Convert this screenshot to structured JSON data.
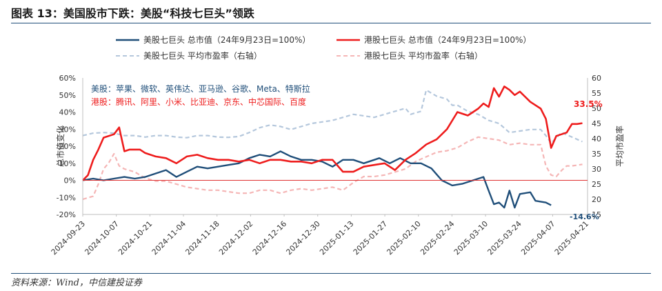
{
  "title": "图表 13：美国股市下跌：美股“科技七巨头”领跌",
  "source": "资料来源：Wind，中信建投证券",
  "chart_data": {
    "type": "line",
    "x_ticks": [
      "2024-09-23",
      "2024-10-07",
      "2024-10-21",
      "2024-11-04",
      "2024-11-18",
      "2024-12-02",
      "2024-12-16",
      "2024-12-30",
      "2025-01-13",
      "2025-01-27",
      "2025-02-10",
      "2025-02-24",
      "2025-03-10",
      "2025-03-24",
      "2025-04-07",
      "2025-04-21"
    ],
    "left_axis": {
      "label": "总市值变化",
      "ticks": [
        "60%",
        "50%",
        "40%",
        "30%",
        "20%",
        "10%",
        "0%",
        "-10%",
        "-20%"
      ],
      "ylim": [
        -20,
        60
      ]
    },
    "right_axis": {
      "label": "平均市盈率",
      "ticks": [
        "60",
        "55",
        "50",
        "45",
        "40",
        "35",
        "30",
        "25",
        "20",
        "15"
      ],
      "ylim": [
        15,
        60
      ]
    },
    "legend": [
      {
        "name": "美股七巨头 总市值（24年9月23日=100%）",
        "color": "#1f4e79",
        "style": "solid"
      },
      {
        "name": "港股七巨头 总市值（24年9月23日=100%）",
        "color": "#ee1c1c",
        "style": "solid"
      },
      {
        "name": "美股七巨头 平均市盈率（右轴）",
        "color": "#b4c7dc",
        "style": "dashed"
      },
      {
        "name": "港股七巨头 平均市盈率（右轴）",
        "color": "#f5b5b5",
        "style": "dashed"
      }
    ],
    "annotations": {
      "us_members": "美股：苹果、微软、英伟达、亚马逊、谷歌、Meta、特斯拉",
      "hk_members": "港股：腾讯、阿里、小米、比亚迪、京东、中芯国际、百度",
      "hk_end_label": "33.5%",
      "us_end_label": "-14.6%"
    },
    "series": [
      {
        "key": "us_cap",
        "axis": "left",
        "values": [
          [
            0,
            0
          ],
          [
            2,
            1
          ],
          [
            4,
            0
          ],
          [
            6,
            1
          ],
          [
            8,
            2
          ],
          [
            10,
            1
          ],
          [
            12,
            2
          ],
          [
            14,
            4
          ],
          [
            16,
            6
          ],
          [
            18,
            2
          ],
          [
            20,
            5
          ],
          [
            22,
            8
          ],
          [
            24,
            7
          ],
          [
            26,
            8
          ],
          [
            28,
            9
          ],
          [
            30,
            10
          ],
          [
            32,
            13
          ],
          [
            34,
            15
          ],
          [
            36,
            14
          ],
          [
            38,
            17
          ],
          [
            40,
            14
          ],
          [
            42,
            12
          ],
          [
            44,
            12
          ],
          [
            46,
            11
          ],
          [
            48,
            8
          ],
          [
            50,
            12
          ],
          [
            52,
            12
          ],
          [
            54,
            10
          ],
          [
            56,
            12
          ],
          [
            57,
            13
          ],
          [
            59,
            10
          ],
          [
            61,
            13
          ],
          [
            63,
            10
          ],
          [
            65,
            10
          ],
          [
            67,
            7
          ],
          [
            69,
            0
          ],
          [
            71,
            -3
          ],
          [
            73,
            -2
          ],
          [
            75,
            0
          ],
          [
            77,
            2
          ],
          [
            78,
            -6
          ],
          [
            79,
            -14
          ],
          [
            80,
            -13
          ],
          [
            81,
            -16
          ],
          [
            82,
            -6
          ],
          [
            83,
            -16
          ],
          [
            84,
            -8
          ],
          [
            86,
            -7
          ],
          [
            87,
            -12
          ],
          [
            89,
            -13
          ],
          [
            90,
            -14.6
          ]
        ]
      },
      {
        "key": "hk_cap",
        "axis": "left",
        "values": [
          [
            0,
            0
          ],
          [
            1,
            3
          ],
          [
            2,
            12
          ],
          [
            3,
            18
          ],
          [
            4,
            25
          ],
          [
            6,
            27
          ],
          [
            7,
            31
          ],
          [
            8,
            17
          ],
          [
            9,
            18
          ],
          [
            11,
            18
          ],
          [
            12,
            16
          ],
          [
            14,
            14
          ],
          [
            16,
            13
          ],
          [
            18,
            10
          ],
          [
            20,
            14
          ],
          [
            22,
            15
          ],
          [
            24,
            13
          ],
          [
            26,
            12
          ],
          [
            28,
            12
          ],
          [
            30,
            11
          ],
          [
            32,
            12
          ],
          [
            34,
            10
          ],
          [
            36,
            12
          ],
          [
            38,
            12
          ],
          [
            40,
            11
          ],
          [
            42,
            11
          ],
          [
            44,
            10
          ],
          [
            46,
            12
          ],
          [
            48,
            12
          ],
          [
            50,
            5
          ],
          [
            52,
            5
          ],
          [
            54,
            8
          ],
          [
            56,
            9
          ],
          [
            58,
            10
          ],
          [
            60,
            6
          ],
          [
            62,
            12
          ],
          [
            64,
            16
          ],
          [
            66,
            21
          ],
          [
            68,
            24
          ],
          [
            70,
            30
          ],
          [
            72,
            40
          ],
          [
            74,
            38
          ],
          [
            76,
            42
          ],
          [
            77,
            45
          ],
          [
            78,
            43
          ],
          [
            79,
            54
          ],
          [
            80,
            49
          ],
          [
            81,
            55
          ],
          [
            82,
            53
          ],
          [
            83,
            50
          ],
          [
            84,
            52
          ],
          [
            86,
            46
          ],
          [
            88,
            42
          ],
          [
            89,
            36
          ],
          [
            90,
            19
          ],
          [
            91,
            26
          ],
          [
            92,
            27
          ],
          [
            93,
            28
          ],
          [
            94,
            33
          ],
          [
            95,
            33
          ],
          [
            96,
            33.5
          ]
        ]
      },
      {
        "key": "us_pe",
        "axis": "right",
        "values": [
          [
            0,
            41
          ],
          [
            2,
            41.8
          ],
          [
            4,
            42
          ],
          [
            6,
            41.8
          ],
          [
            8,
            41
          ],
          [
            10,
            41
          ],
          [
            12,
            40.5
          ],
          [
            14,
            41
          ],
          [
            16,
            41
          ],
          [
            18,
            40.5
          ],
          [
            20,
            40.3
          ],
          [
            22,
            41
          ],
          [
            24,
            41
          ],
          [
            26,
            40.5
          ],
          [
            28,
            40.4
          ],
          [
            30,
            40.7
          ],
          [
            32,
            42
          ],
          [
            34,
            43.6
          ],
          [
            36,
            44.5
          ],
          [
            38,
            44
          ],
          [
            40,
            43
          ],
          [
            42,
            44
          ],
          [
            44,
            45
          ],
          [
            46,
            45.5
          ],
          [
            48,
            46
          ],
          [
            50,
            47
          ],
          [
            52,
            48
          ],
          [
            54,
            47.5
          ],
          [
            56,
            47
          ],
          [
            58,
            48
          ],
          [
            60,
            49
          ],
          [
            62,
            50
          ],
          [
            63,
            48
          ],
          [
            65,
            49
          ],
          [
            66,
            56
          ],
          [
            67,
            55
          ],
          [
            68,
            54
          ],
          [
            70,
            53
          ],
          [
            71,
            51
          ],
          [
            72,
            51
          ],
          [
            74,
            49
          ],
          [
            76,
            48
          ],
          [
            78,
            46
          ],
          [
            80,
            45
          ],
          [
            82,
            42
          ],
          [
            84,
            42.5
          ],
          [
            86,
            43
          ],
          [
            88,
            43
          ],
          [
            89,
            41
          ],
          [
            90,
            38.5
          ],
          [
            92,
            42
          ],
          [
            94,
            40.5
          ],
          [
            96,
            39
          ]
        ]
      },
      {
        "key": "hk_pe",
        "axis": "right",
        "values": [
          [
            0,
            20
          ],
          [
            2,
            21
          ],
          [
            3,
            25
          ],
          [
            4,
            30
          ],
          [
            5,
            32
          ],
          [
            6,
            35
          ],
          [
            7,
            31
          ],
          [
            8,
            30
          ],
          [
            10,
            29
          ],
          [
            12,
            27
          ],
          [
            14,
            26
          ],
          [
            16,
            26
          ],
          [
            18,
            25
          ],
          [
            20,
            24
          ],
          [
            22,
            23.5
          ],
          [
            24,
            23
          ],
          [
            26,
            23
          ],
          [
            28,
            22.5
          ],
          [
            30,
            22
          ],
          [
            32,
            22
          ],
          [
            34,
            23
          ],
          [
            36,
            23
          ],
          [
            38,
            22
          ],
          [
            40,
            23
          ],
          [
            42,
            23.5
          ],
          [
            44,
            23
          ],
          [
            46,
            23.5
          ],
          [
            48,
            24
          ],
          [
            50,
            23
          ],
          [
            52,
            25.5
          ],
          [
            54,
            27.5
          ],
          [
            56,
            27.5
          ],
          [
            58,
            28
          ],
          [
            60,
            29
          ],
          [
            62,
            30
          ],
          [
            64,
            32.5
          ],
          [
            66,
            34
          ],
          [
            68,
            35.5
          ],
          [
            70,
            36
          ],
          [
            72,
            37
          ],
          [
            74,
            39
          ],
          [
            76,
            40.5
          ],
          [
            78,
            40
          ],
          [
            80,
            39.5
          ],
          [
            82,
            38
          ],
          [
            84,
            38.5
          ],
          [
            86,
            38
          ],
          [
            88,
            38
          ],
          [
            89,
            31
          ],
          [
            90,
            28
          ],
          [
            91,
            27.5
          ],
          [
            92,
            29.5
          ],
          [
            93,
            31
          ],
          [
            94,
            31
          ],
          [
            96,
            31.5
          ]
        ]
      }
    ]
  }
}
